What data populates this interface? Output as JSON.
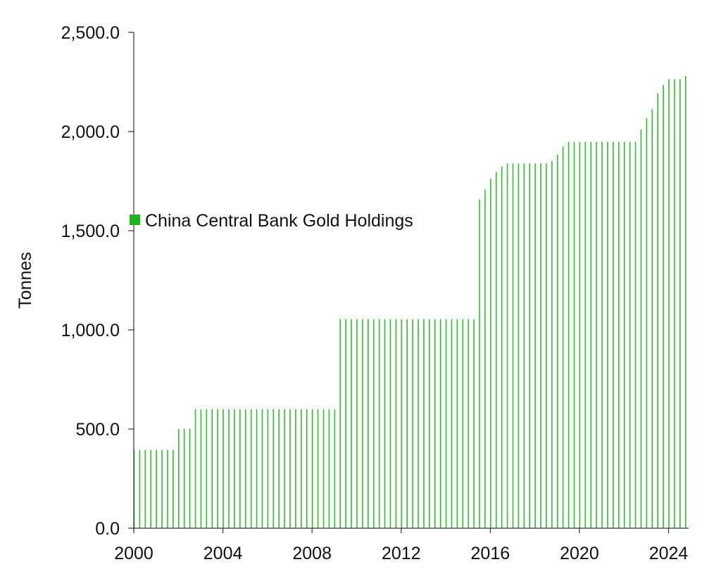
{
  "chart_data": {
    "type": "bar",
    "title": "",
    "xlabel": "",
    "ylabel": "Tonnes",
    "legend": {
      "label": "China Central Bank Gold Holdings",
      "position": "left-middle"
    },
    "colors": {
      "series": "#2DBE2D",
      "legend_marker": "#1DB31D",
      "axis": "#333333"
    },
    "xlim": [
      2000,
      2024.9
    ],
    "ylim": [
      0,
      2500
    ],
    "x_ticks": [
      2000,
      2004,
      2008,
      2012,
      2016,
      2020,
      2024
    ],
    "y_ticks": [
      "0.0",
      "500.0",
      "1,000.0",
      "1,500.0",
      "2,000.0",
      "2,500.0"
    ],
    "y_tick_values": [
      0,
      500,
      1000,
      1500,
      2000,
      2500
    ],
    "step_series": {
      "name": "China Central Bank Gold Holdings",
      "frequency": "quarterly",
      "start": 2000.0,
      "end": 2024.9,
      "steps": [
        {
          "from": 2000.0,
          "value": 395
        },
        {
          "from": 2001.8,
          "value": 500
        },
        {
          "from": 2002.75,
          "value": 600
        },
        {
          "from": 2009.25,
          "value": 1054
        },
        {
          "from": 2015.5,
          "value": 1658
        },
        {
          "from": 2015.75,
          "value": 1708
        },
        {
          "from": 2016.0,
          "value": 1762
        },
        {
          "from": 2016.25,
          "value": 1797
        },
        {
          "from": 2016.5,
          "value": 1823
        },
        {
          "from": 2016.75,
          "value": 1839
        },
        {
          "from": 2018.75,
          "value": 1852
        },
        {
          "from": 2019.0,
          "value": 1885
        },
        {
          "from": 2019.25,
          "value": 1926
        },
        {
          "from": 2019.5,
          "value": 1948
        },
        {
          "from": 2022.75,
          "value": 2010
        },
        {
          "from": 2023.0,
          "value": 2068
        },
        {
          "from": 2023.25,
          "value": 2113
        },
        {
          "from": 2023.5,
          "value": 2192
        },
        {
          "from": 2023.75,
          "value": 2235
        },
        {
          "from": 2024.0,
          "value": 2264
        },
        {
          "from": 2024.75,
          "value": 2280
        }
      ]
    }
  }
}
